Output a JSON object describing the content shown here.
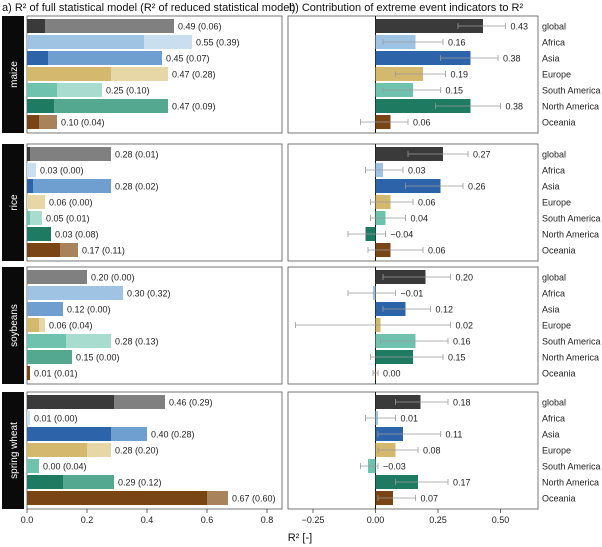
{
  "chart_data": {
    "type": "bar",
    "title_a": "a) R² of full statistical model (R² of reduced statistical model)",
    "title_b": "b) Contribution of extreme event indicators to R²",
    "xlabel": "R² [-]",
    "regions": [
      "global",
      "Africa",
      "Asia",
      "Europe",
      "South America",
      "North America",
      "Oceania"
    ],
    "colors": {
      "global": {
        "full": "#808080",
        "reduced": "#3a3a3a",
        "contrib": "#3a3a3a"
      },
      "Africa": {
        "full": "#c9dff0",
        "reduced": "#9fc4e3",
        "contrib": "#9fc4e3"
      },
      "Asia": {
        "full": "#6f9fd0",
        "reduced": "#2d63a8",
        "contrib": "#2d63a8"
      },
      "Europe": {
        "full": "#e8d7a6",
        "reduced": "#d4b86e",
        "contrib": "#d4b86e"
      },
      "South America": {
        "full": "#a8dccf",
        "reduced": "#6fc2ae",
        "contrib": "#6fc2ae"
      },
      "North America": {
        "full": "#55a890",
        "reduced": "#1f7a62",
        "contrib": "#1f7a62"
      },
      "Oceania": {
        "full": "#a8825a",
        "reduced": "#7a4514",
        "contrib": "#7a4514"
      }
    },
    "panel_a": {
      "xlim": [
        0,
        0.85
      ],
      "xticks": [
        0.0,
        0.2,
        0.4,
        0.6,
        0.8
      ],
      "xtick_labels": [
        "0.0",
        "0.2",
        "0.4",
        "0.6",
        "0.8"
      ]
    },
    "panel_b": {
      "xlim": [
        -0.35,
        0.65
      ],
      "xticks": [
        -0.25,
        0.0,
        0.25,
        0.5
      ],
      "xtick_labels": [
        "−0.25",
        "0.00",
        "0.25",
        "0.50"
      ]
    },
    "crops": [
      {
        "name": "maize",
        "full": [
          0.49,
          0.55,
          0.45,
          0.47,
          0.25,
          0.47,
          0.1
        ],
        "reduced": [
          0.06,
          0.39,
          0.07,
          0.28,
          0.1,
          0.09,
          0.04
        ],
        "labels": [
          "0.49 (0.06)",
          "0.55 (0.39)",
          "0.45 (0.07)",
          "0.47 (0.28)",
          "0.25 (0.10)",
          "0.47 (0.09)",
          "0.10 (0.04)"
        ],
        "contrib": [
          0.43,
          0.16,
          0.38,
          0.19,
          0.15,
          0.38,
          0.06
        ],
        "contrib_labels": [
          "0.43",
          "0.16",
          "0.38",
          "0.19",
          "0.15",
          "0.38",
          "0.06"
        ],
        "err_low": [
          0.33,
          0.03,
          0.26,
          0.08,
          0.03,
          0.24,
          -0.06
        ],
        "err_high": [
          0.52,
          0.27,
          0.49,
          0.28,
          0.26,
          0.5,
          0.13
        ]
      },
      {
        "name": "rice",
        "full": [
          0.28,
          0.03,
          0.28,
          0.06,
          0.05,
          0.03,
          0.17
        ],
        "reduced": [
          0.01,
          0.0,
          0.02,
          0.0,
          0.01,
          0.08,
          0.11
        ],
        "labels": [
          "0.28 (0.01)",
          "0.03 (0.00)",
          "0.28 (0.02)",
          "0.06 (0.00)",
          "0.05 (0.01)",
          "0.03 (0.08)",
          "0.17 (0.11)"
        ],
        "contrib": [
          0.27,
          0.03,
          0.26,
          0.06,
          0.04,
          -0.04,
          0.06
        ],
        "contrib_labels": [
          "0.27",
          "0.03",
          "0.26",
          "0.06",
          "0.04",
          "−0.04",
          "0.06"
        ],
        "err_low": [
          0.13,
          -0.04,
          0.12,
          -0.02,
          -0.02,
          -0.11,
          -0.03
        ],
        "err_high": [
          0.37,
          0.11,
          0.35,
          0.15,
          0.12,
          0.04,
          0.19
        ]
      },
      {
        "name": "soybeans",
        "full": [
          0.2,
          0.3,
          0.12,
          0.06,
          0.28,
          0.15,
          0.01
        ],
        "reduced": [
          0.0,
          0.32,
          0.0,
          0.04,
          0.13,
          0.0,
          0.01
        ],
        "labels": [
          "0.20 (0.00)",
          "0.30 (0.32)",
          "0.12 (0.00)",
          "0.06 (0.04)",
          "0.28 (0.13)",
          "0.15 (0.00)",
          "0.01 (0.01)"
        ],
        "contrib": [
          0.2,
          -0.01,
          0.12,
          0.02,
          0.16,
          0.15,
          0.0
        ],
        "contrib_labels": [
          "0.20",
          "−0.01",
          "0.12",
          "0.02",
          "0.16",
          "0.15",
          "0.00"
        ],
        "err_low": [
          0.03,
          -0.11,
          0.03,
          -0.32,
          0.02,
          -0.02,
          -0.01
        ],
        "err_high": [
          0.3,
          0.08,
          0.22,
          0.3,
          0.29,
          0.27,
          0.01
        ]
      },
      {
        "name": "spring wheat",
        "full": [
          0.46,
          0.01,
          0.4,
          0.28,
          0.0,
          0.29,
          0.67
        ],
        "reduced": [
          0.29,
          0.0,
          0.28,
          0.2,
          0.04,
          0.12,
          0.6
        ],
        "labels": [
          "0.46 (0.29)",
          "0.01 (0.00)",
          "0.40 (0.28)",
          "0.28 (0.20)",
          "0.00 (0.04)",
          "0.29 (0.12)",
          "0.67 (0.60)"
        ],
        "contrib": [
          0.18,
          0.01,
          0.11,
          0.08,
          -0.03,
          0.17,
          0.07
        ],
        "contrib_labels": [
          "0.18",
          "0.01",
          "0.11",
          "0.08",
          "−0.03",
          "0.17",
          "0.07"
        ],
        "err_low": [
          0.08,
          -0.04,
          0.01,
          0.01,
          -0.06,
          0.08,
          0.01
        ],
        "err_high": [
          0.29,
          0.08,
          0.26,
          0.17,
          0.01,
          0.29,
          0.16
        ]
      }
    ]
  }
}
